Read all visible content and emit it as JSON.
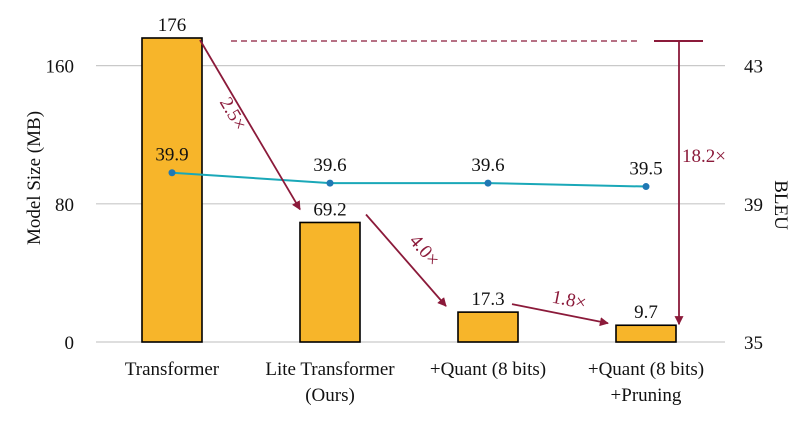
{
  "chart_data": {
    "type": "bar",
    "categories": [
      [
        "Transformer"
      ],
      [
        "Lite Transformer",
        "(Ours)"
      ],
      [
        "+Quant (8 bits)"
      ],
      [
        "+Quant (8 bits)",
        "+Pruning"
      ]
    ],
    "series": [
      {
        "name": "Model Size (MB)",
        "axis": "left",
        "type": "bar",
        "values": [
          176,
          69.2,
          17.3,
          9.7
        ],
        "labels": [
          "176",
          "69.2",
          "17.3",
          "9.7"
        ]
      },
      {
        "name": "BLEU",
        "axis": "right",
        "type": "line",
        "values": [
          39.9,
          39.6,
          39.6,
          39.5
        ],
        "labels": [
          "39.9",
          "39.6",
          "39.6",
          "39.5"
        ]
      }
    ],
    "ylabel": "Model Size (MB)",
    "y2label": "BLEU",
    "ylim": [
      0,
      176
    ],
    "y2lim": [
      35,
      43.8
    ],
    "yticks": [
      0,
      80,
      160
    ],
    "ytick_labels": [
      "0",
      "80",
      "160"
    ],
    "y2ticks": [
      35,
      39,
      43
    ],
    "y2tick_labels": [
      "35",
      "39",
      "43"
    ],
    "grid": true,
    "annotations": [
      {
        "text": "2.5×",
        "from": 0,
        "to": 1
      },
      {
        "text": "4.0×",
        "from": 1,
        "to": 2
      },
      {
        "text": "1.8×",
        "from": 2,
        "to": 3
      },
      {
        "text": "18.2×",
        "from": 0,
        "to": 3
      }
    ],
    "colors": {
      "bar": "#f7b52a",
      "line": "#1aa8b8",
      "point": "#1f78b4",
      "annotation": "#8b1a3a",
      "grid": "#c9c9c9"
    }
  }
}
